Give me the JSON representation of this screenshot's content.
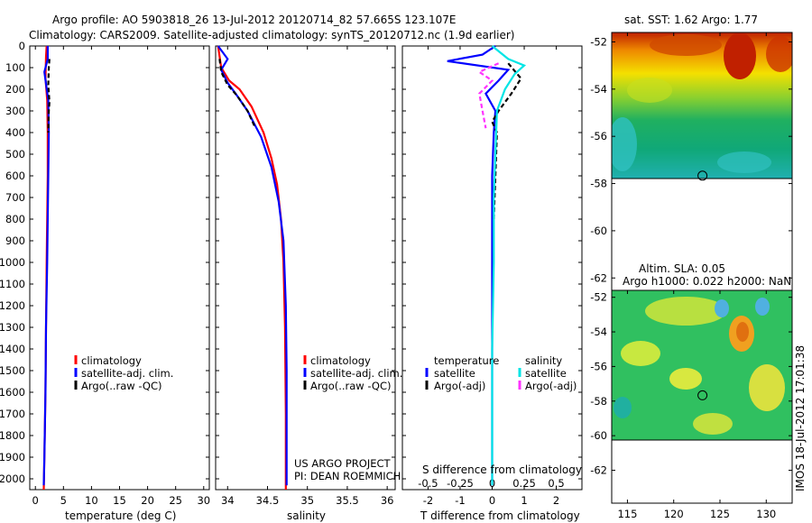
{
  "header": {
    "line1": "Argo profile: AO 5903818_26 13-Jul-2012 20120714_82 57.665S 123.107E",
    "line2": "Climatology: CARS2009. Satellite-adjusted climatology: synTS_20120712.nc (1.9d earlier)"
  },
  "credit": {
    "project": "US ARGO PROJECT",
    "pi": "PI: DEAN ROEMMICH"
  },
  "side_stamp": "IMOS 18-Jul-2012 17:01:38",
  "colors": {
    "climatology": "#ff0000",
    "satellite": "#0000ff",
    "argo": "#000000",
    "sal_satellite": "#00e5e5",
    "sal_argo": "#ff33ff"
  },
  "chart_data": [
    {
      "type": "line",
      "xlabel": "temperature (deg C)",
      "ylabel": "",
      "xlim": [
        -1,
        31
      ],
      "ylim": [
        2050,
        0
      ],
      "x_ticks": [
        0,
        5,
        10,
        15,
        20,
        25,
        30
      ],
      "y_ticks": [
        0,
        100,
        200,
        300,
        400,
        500,
        600,
        700,
        800,
        900,
        1000,
        1100,
        1200,
        1300,
        1400,
        1500,
        1600,
        1700,
        1800,
        1900,
        2000
      ],
      "legend": [
        "climatology",
        "satellite-adj. clim.",
        "Argo(..raw -QC)"
      ],
      "legend_position": "bottom-center",
      "series": [
        {
          "name": "climatology",
          "x": [
            2.0,
            1.9,
            1.8,
            2.1,
            2.2,
            2.2,
            2.1,
            2.0,
            1.9,
            1.8,
            1.6,
            1.5
          ],
          "y": [
            0,
            50,
            150,
            250,
            400,
            600,
            800,
            1000,
            1300,
            1600,
            1900,
            2050
          ]
        },
        {
          "name": "satellite-adj. clim.",
          "x": [
            2.2,
            2.2,
            1.6,
            2.3,
            2.4,
            2.3,
            2.2,
            2.1,
            1.9,
            1.8,
            1.6,
            1.5
          ],
          "y": [
            0,
            60,
            120,
            250,
            400,
            600,
            800,
            1000,
            1300,
            1600,
            1900,
            2030
          ]
        },
        {
          "name": "Argo(..raw -QC)",
          "x": [
            2.5,
            2.4,
            2.3,
            2.5,
            2.4,
            2.3
          ],
          "y": [
            60,
            100,
            180,
            260,
            300,
            400
          ]
        }
      ]
    },
    {
      "type": "line",
      "xlabel": "salinity",
      "ylabel": "",
      "xlim": [
        33.85,
        36.1
      ],
      "ylim": [
        2050,
        0
      ],
      "x_ticks": [
        34,
        34.5,
        35,
        35.5,
        36
      ],
      "y_ticks": [],
      "legend": [
        "climatology",
        "satellite-adj. clim.",
        "Argo(..raw -QC)"
      ],
      "legend_position": "bottom-right",
      "series": [
        {
          "name": "climatology",
          "x": [
            33.88,
            33.92,
            34.02,
            34.15,
            34.3,
            34.45,
            34.55,
            34.62,
            34.67,
            34.7,
            34.72,
            34.73,
            34.73
          ],
          "y": [
            0,
            100,
            160,
            200,
            280,
            400,
            520,
            640,
            800,
            1000,
            1300,
            1700,
            2050
          ]
        },
        {
          "name": "satellite-adj. clim.",
          "x": [
            33.88,
            34.0,
            33.92,
            34.0,
            34.1,
            34.25,
            34.42,
            34.55,
            34.64,
            34.7,
            34.73,
            34.74,
            34.74,
            34.74
          ],
          "y": [
            0,
            60,
            110,
            170,
            220,
            300,
            420,
            560,
            720,
            900,
            1200,
            1500,
            1800,
            2030
          ]
        },
        {
          "name": "Argo(..raw -QC)",
          "x": [
            33.9,
            33.92,
            34.0,
            34.12,
            34.25,
            34.35
          ],
          "y": [
            60,
            120,
            180,
            230,
            300,
            380
          ]
        }
      ]
    },
    {
      "type": "line",
      "xlabel": "T difference from climatology",
      "xlabel_top": "S difference from climatology",
      "ylabel": "",
      "xlim": [
        -2.8,
        2.8
      ],
      "ylim": [
        2050,
        0
      ],
      "x_ticks": [
        -2,
        -1,
        0,
        1,
        2
      ],
      "x_ticks_top": [
        "-0.5",
        "-0.25",
        "0",
        "0.25",
        "0.5"
      ],
      "y_ticks": [],
      "legend_groups": [
        {
          "title": "temperature",
          "items": [
            "satellite",
            "Argo(-adj)"
          ]
        },
        {
          "title": "salinity",
          "items": [
            "satellite",
            "Argo(-adj)"
          ]
        }
      ],
      "legend_position": "bottom-center",
      "series": [
        {
          "name": "temperature satellite",
          "x": [
            0.1,
            -0.3,
            -1.4,
            0.5,
            0.2,
            -0.2,
            0.1,
            0.05,
            0.0,
            0.0,
            0.0,
            0.0,
            0.0
          ],
          "y": [
            0,
            40,
            70,
            110,
            160,
            220,
            300,
            400,
            600,
            900,
            1300,
            1700,
            2030
          ]
        },
        {
          "name": "temperature Argo(-adj)",
          "x": [
            0.5,
            0.9,
            0.6,
            0.2,
            0.0,
            0.15,
            0.1,
            0.05
          ],
          "y": [
            80,
            150,
            220,
            300,
            350,
            400,
            600,
            800
          ]
        },
        {
          "name": "salinity satellite",
          "x": [
            0.0,
            0.5,
            1.0,
            0.7,
            0.4,
            0.15,
            0.1,
            0.05,
            0.05,
            0.0,
            0.0,
            0.0
          ],
          "y": [
            0,
            60,
            90,
            130,
            200,
            300,
            500,
            700,
            1000,
            1400,
            1800,
            2030
          ]
        },
        {
          "name": "salinity Argo(-adj)",
          "x": [
            0.2,
            -0.4,
            0.0,
            -0.4,
            -0.3,
            -0.2
          ],
          "y": [
            80,
            120,
            160,
            220,
            300,
            380
          ]
        }
      ]
    },
    {
      "type": "heatmap",
      "title": "sat. SST: 1.62 Argo: 1.77",
      "x_ticks": [
        115,
        120,
        125,
        130
      ],
      "y_ticks": [
        -52,
        -54,
        -56,
        -58,
        -60,
        -62
      ],
      "xlim": [
        113.3,
        132.8
      ],
      "ylim": [
        -63.9,
        -51.6
      ],
      "marker": {
        "lon": 123.107,
        "lat": -57.665
      }
    },
    {
      "type": "heatmap",
      "title": "Altim. SLA: 0.05",
      "subtitle": "Argo h1000: 0.022 h2000: NaN",
      "x_ticks": [
        115,
        120,
        125,
        130
      ],
      "y_ticks": [
        -52,
        -54,
        -56,
        -58,
        -60,
        -62
      ],
      "xlim": [
        113.3,
        132.8
      ],
      "ylim": [
        -63.9,
        -51.6
      ],
      "marker": {
        "lon": 123.107,
        "lat": -57.665
      }
    }
  ]
}
